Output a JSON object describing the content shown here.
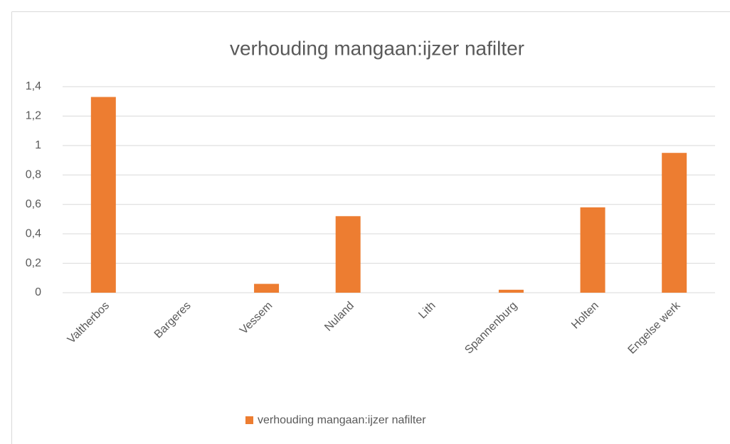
{
  "chart_data": {
    "type": "bar",
    "title": "verhouding mangaan:ijzer nafilter",
    "categories": [
      "Valtherbos",
      "Bargeres",
      "Vessem",
      "Nuland",
      "Lith",
      "Spannenburg",
      "Holten",
      "Engelse werk"
    ],
    "series": [
      {
        "name": "verhouding mangaan:ijzer nafilter",
        "color": "#ed7d31",
        "values": [
          1.33,
          0,
          0.06,
          0.52,
          0,
          0.02,
          0.58,
          0.95
        ]
      }
    ],
    "ylim": [
      0,
      1.4
    ],
    "yticks": [
      0,
      {
        "value": 0.2,
        "label": "0,2"
      },
      {
        "value": 0.4,
        "label": "0,4"
      },
      {
        "value": 0.6,
        "label": "0,6"
      },
      {
        "value": 0.8,
        "label": "0,8"
      },
      1,
      {
        "value": 1.2,
        "label": "1,2"
      },
      {
        "value": 1.4,
        "label": "1,4"
      }
    ],
    "grid": true,
    "legend": "bottom"
  }
}
